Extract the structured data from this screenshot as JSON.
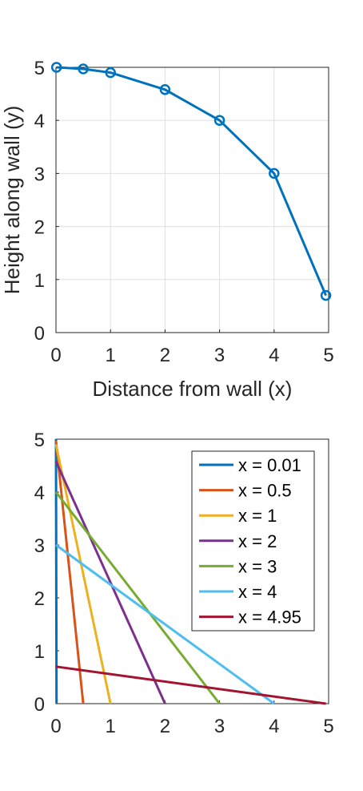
{
  "chart_data": [
    {
      "type": "line",
      "title": "",
      "xlabel": "Distance from wall (x)",
      "ylabel": "Height along wall (y)",
      "xlim": [
        0,
        5
      ],
      "ylim": [
        0,
        5
      ],
      "xticks": [
        "0",
        "1",
        "2",
        "3",
        "4",
        "5"
      ],
      "yticks": [
        "0",
        "1",
        "2",
        "3",
        "4",
        "5"
      ],
      "grid": true,
      "marker": "circle",
      "series": [
        {
          "color": "#0072BD",
          "x": [
            0.01,
            0.5,
            1,
            2,
            3,
            4,
            4.95
          ],
          "y": [
            5.0,
            4.97,
            4.9,
            4.58,
            4.0,
            3.0,
            0.7
          ]
        }
      ]
    },
    {
      "type": "line",
      "title": "",
      "xlabel": "",
      "ylabel": "",
      "xlim": [
        0,
        5
      ],
      "ylim": [
        0,
        5
      ],
      "xticks": [
        "0",
        "1",
        "2",
        "3",
        "4",
        "5"
      ],
      "yticks": [
        "0",
        "1",
        "2",
        "3",
        "4",
        "5"
      ],
      "grid": false,
      "legend": "top-right",
      "series": [
        {
          "name": "x = 0.01",
          "color": "#0072BD",
          "x": [
            0,
            0.01
          ],
          "y": [
            5.0,
            0
          ]
        },
        {
          "name": "x = 0.5",
          "color": "#D95319",
          "x": [
            0,
            0.5
          ],
          "y": [
            4.97,
            0
          ]
        },
        {
          "name": "x = 1",
          "color": "#EDB120",
          "x": [
            0,
            1
          ],
          "y": [
            4.9,
            0
          ]
        },
        {
          "name": "x = 2",
          "color": "#7E2F8E",
          "x": [
            0,
            2
          ],
          "y": [
            4.58,
            0
          ]
        },
        {
          "name": "x = 3",
          "color": "#77AC30",
          "x": [
            0,
            3
          ],
          "y": [
            4.0,
            0
          ]
        },
        {
          "name": "x = 4",
          "color": "#4DBEEE",
          "x": [
            0,
            4
          ],
          "y": [
            3.0,
            0
          ]
        },
        {
          "name": "x = 4.95",
          "color": "#A2142F",
          "x": [
            0,
            4.95
          ],
          "y": [
            0.7,
            0
          ]
        }
      ]
    }
  ]
}
